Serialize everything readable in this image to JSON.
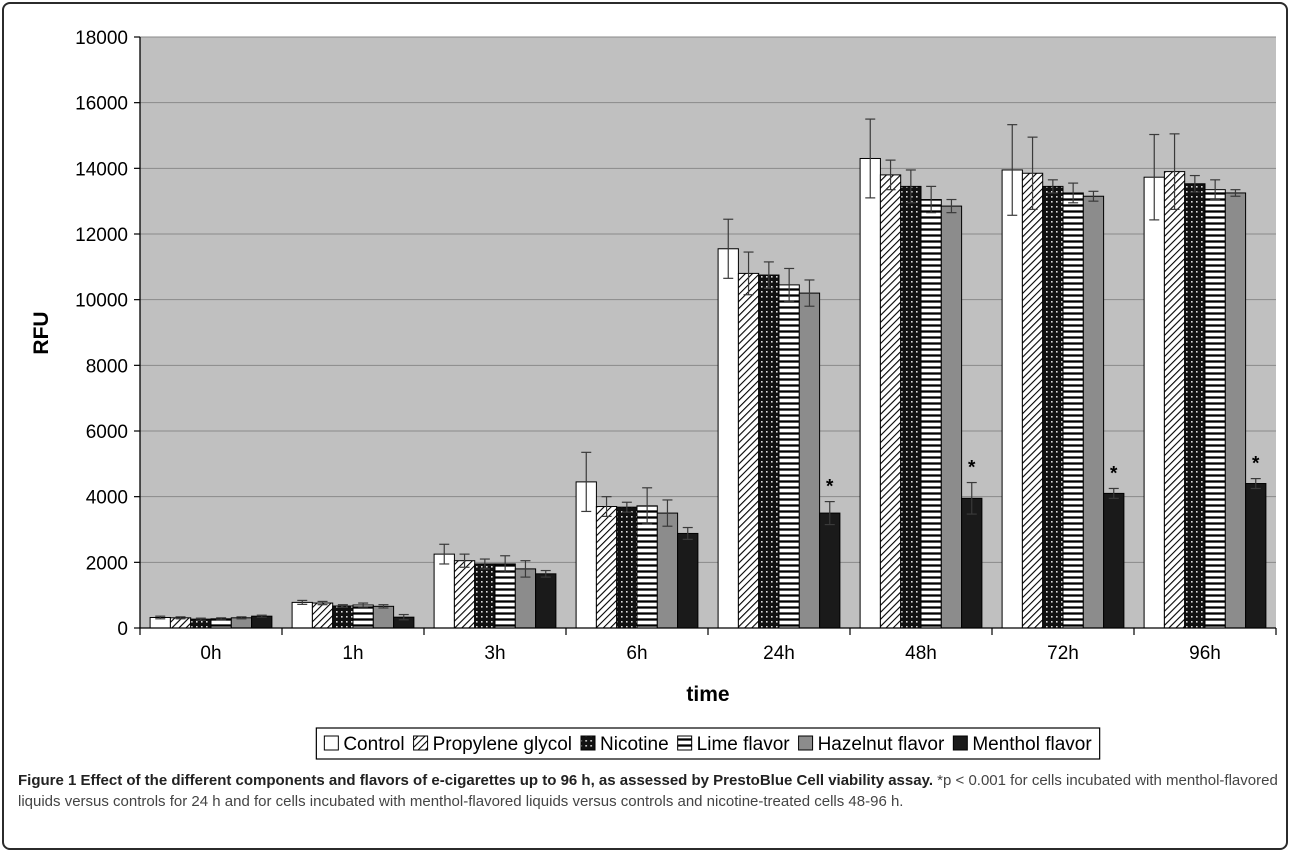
{
  "chart_data": {
    "type": "bar",
    "ylabel": "RFU",
    "xlabel": "time",
    "ylim": [
      0,
      18000
    ],
    "yticks": [
      0,
      2000,
      4000,
      6000,
      8000,
      10000,
      12000,
      14000,
      16000,
      18000
    ],
    "grid": true,
    "legend_position": "bottom",
    "categories": [
      "0h",
      "1h",
      "3h",
      "6h",
      "24h",
      "48h",
      "72h",
      "96h"
    ],
    "series": [
      {
        "name": "Control",
        "pattern": "white",
        "values": [
          320,
          780,
          2250,
          4450,
          11550,
          14300,
          13950,
          13730
        ],
        "errors": [
          40,
          60,
          300,
          900,
          900,
          1200,
          1380,
          1300
        ]
      },
      {
        "name": "Propylene glycol",
        "pattern": "diagonal",
        "values": [
          310,
          760,
          2050,
          3700,
          10800,
          13800,
          13850,
          13900
        ],
        "errors": [
          30,
          50,
          200,
          300,
          650,
          450,
          1100,
          1150
        ]
      },
      {
        "name": "Nicotine",
        "pattern": "dots",
        "values": [
          270,
          670,
          1950,
          3680,
          10750,
          13450,
          13450,
          13530
        ],
        "errors": [
          30,
          40,
          150,
          150,
          400,
          500,
          200,
          250
        ]
      },
      {
        "name": "Lime flavor",
        "pattern": "horizontal",
        "values": [
          280,
          700,
          1950,
          3720,
          10450,
          13050,
          13250,
          13350
        ],
        "errors": [
          30,
          60,
          250,
          550,
          500,
          400,
          300,
          300
        ]
      },
      {
        "name": "Hazelnut flavor",
        "pattern": "gray",
        "values": [
          310,
          660,
          1800,
          3500,
          10200,
          12850,
          13150,
          13250
        ],
        "errors": [
          30,
          50,
          250,
          400,
          400,
          200,
          150,
          100
        ]
      },
      {
        "name": "Menthol flavor",
        "pattern": "black",
        "values": [
          360,
          330,
          1650,
          2880,
          3500,
          3950,
          4100,
          4400
        ],
        "errors": [
          30,
          80,
          100,
          180,
          350,
          480,
          150,
          150
        ]
      }
    ],
    "significance_marker": "*",
    "significant_categories": [
      "24h",
      "48h",
      "72h",
      "96h"
    ]
  },
  "caption": {
    "title": "Figure 1 Effect of the different components and flavors of e-cigarettes up to 96 h, as assessed by PrestoBlue Cell viability assay.",
    "body": "*p < 0.001 for cells incubated with menthol-flavored liquids versus controls for 24 h and for cells incubated with menthol-flavored liquids versus controls and nicotine-treated cells 48-96 h."
  }
}
